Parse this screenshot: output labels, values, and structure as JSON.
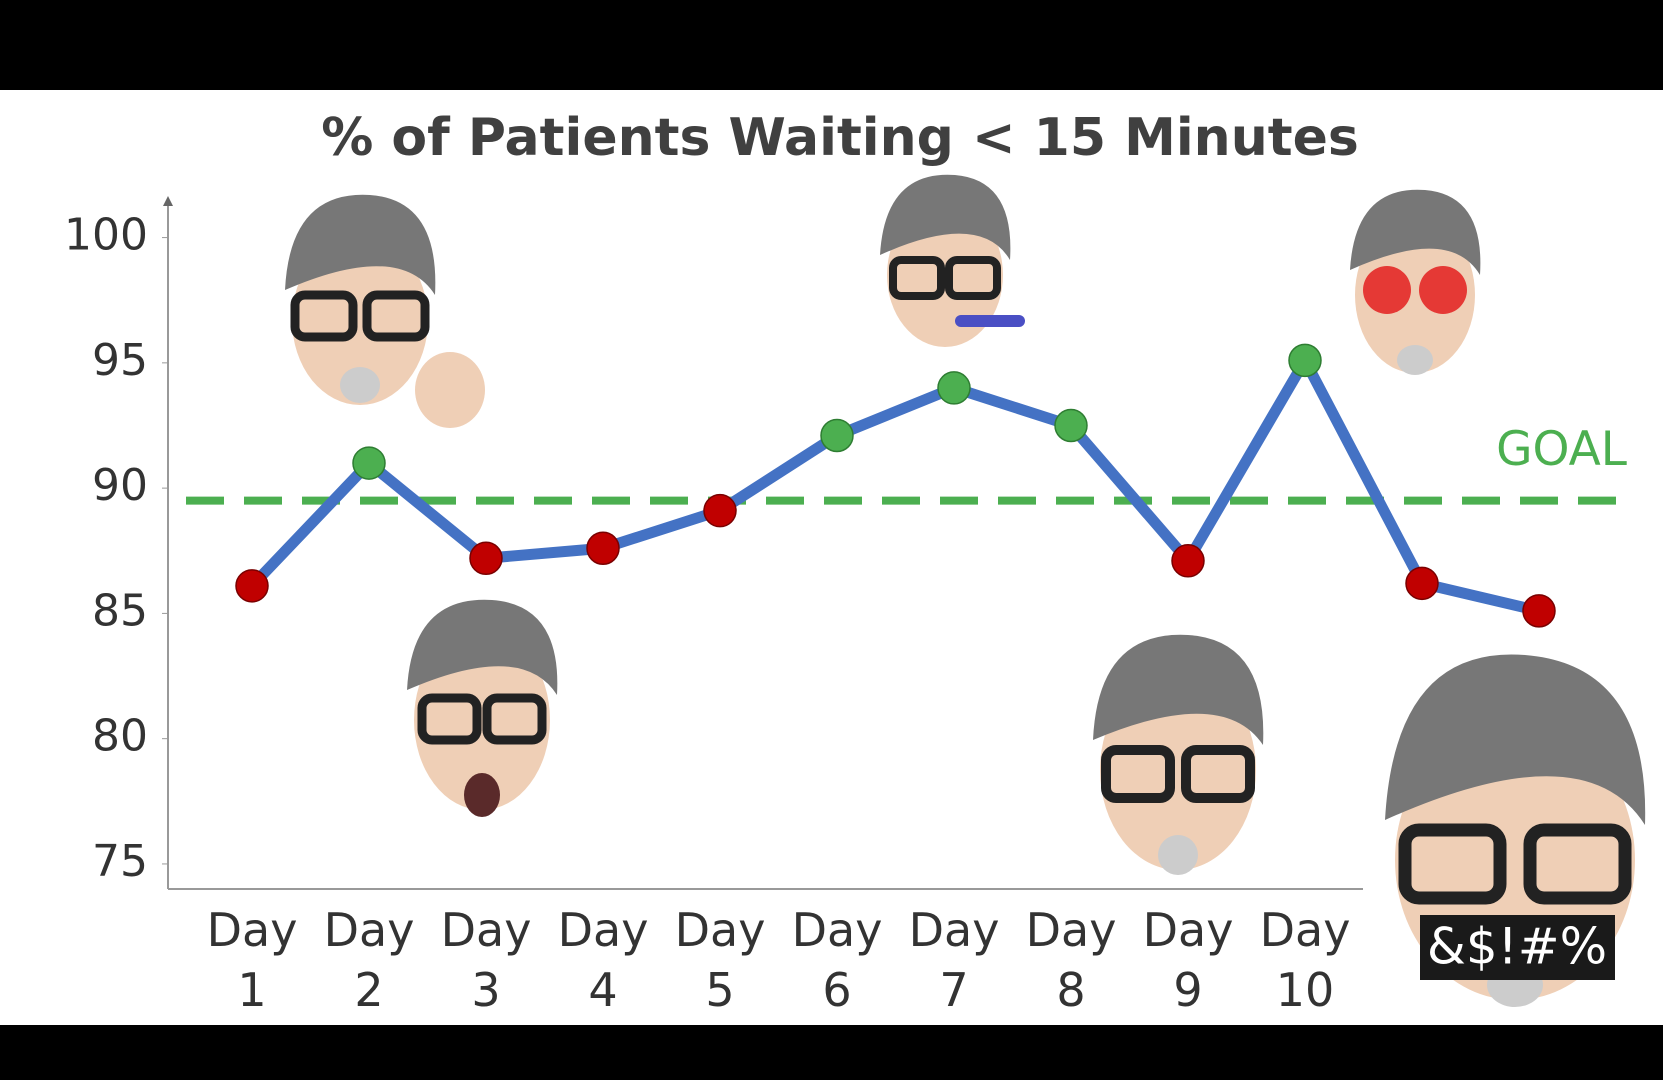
{
  "chart_data": {
    "type": "line",
    "title": "% of Patients Waiting < 15 Minutes",
    "categories": [
      "Day 1",
      "Day 2",
      "Day 3",
      "Day 4",
      "Day 5",
      "Day 6",
      "Day 7",
      "Day 8",
      "Day 9",
      "Day 10",
      null,
      null
    ],
    "values": [
      86.1,
      91.0,
      87.2,
      87.6,
      89.1,
      92.1,
      94.0,
      92.5,
      87.1,
      95.1,
      86.2,
      85.1
    ],
    "color": "#4472c4",
    "above_color": "#4caf50",
    "below_color": "#c00000",
    "goal": {
      "value": 89.5,
      "label": "GOAL",
      "color": "#4caf50"
    },
    "ylim": [
      74,
      101.5
    ],
    "yticks": [
      75,
      80,
      85,
      90,
      95,
      100
    ],
    "annotation": "&$!#%"
  }
}
